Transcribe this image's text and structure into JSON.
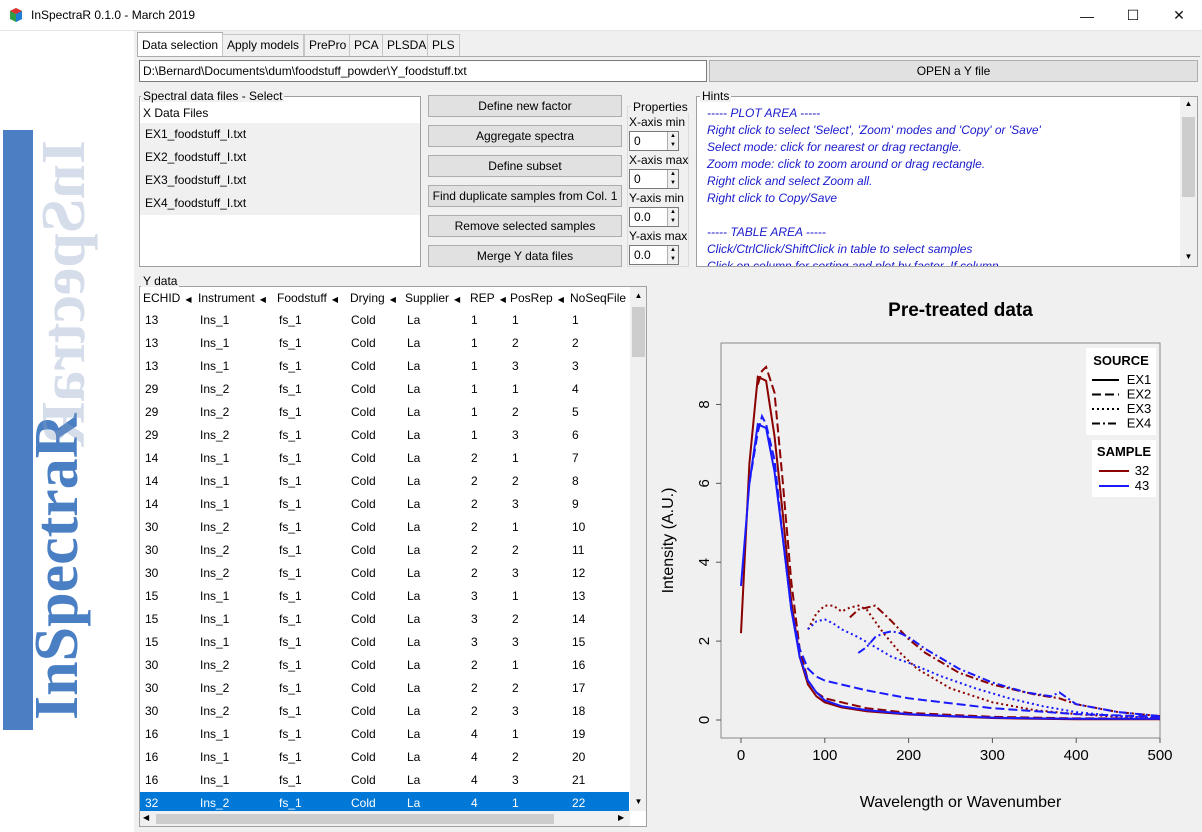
{
  "window": {
    "title": "InSpectraR 0.1.0  -  March 2019",
    "minimize": "—",
    "maximize": "☐",
    "close": "✕"
  },
  "logo": {
    "text": "InSpectraR"
  },
  "tabs": [
    "Data selection",
    "Apply models",
    "PrePro",
    "PCA",
    "PLSDA",
    "PLS"
  ],
  "file_path": "D:\\Bernard\\Documents\\dum\\foodstuff_powder\\Y_foodstuff.txt",
  "open_button": "OPEN a Y file",
  "spectral": {
    "legend": "Spectral data files - Select",
    "header": "X Data Files",
    "files": [
      "EX1_foodstuff_I.txt",
      "EX2_foodstuff_I.txt",
      "EX3_foodstuff_I.txt",
      "EX4_foodstuff_I.txt"
    ]
  },
  "actions": [
    "Define new factor",
    "Aggregate spectra",
    "Define subset",
    "Find duplicate samples from Col. 1",
    "Remove selected samples",
    "Merge Y data files"
  ],
  "properties": {
    "legend": "Properties",
    "fields": [
      {
        "label": "X-axis min",
        "value": "0"
      },
      {
        "label": "X-axis max",
        "value": "0"
      },
      {
        "label": "Y-axis min",
        "value": "0.0"
      },
      {
        "label": "Y-axis max",
        "value": "0.0"
      }
    ]
  },
  "hints": {
    "legend": "Hints",
    "lines": [
      "----- PLOT AREA -----",
      "Right click to select 'Select', 'Zoom' modes and 'Copy' or 'Save'",
      "Select mode: click for nearest or drag rectangle.",
      "Zoom mode: click to zoom around or drag rectangle.",
      "Right click and select Zoom all.",
      "Right click to Copy/Save",
      "",
      "----- TABLE AREA -----",
      "Click/CtrlClick/ShiftClick in table to select samples",
      "Click on column for sorting and plot by factor. If column"
    ]
  },
  "ydata": {
    "legend": "Y data",
    "columns": [
      "ECHID",
      "Instrument",
      "Foodstuff",
      "Drying",
      "Supplier",
      "REP",
      "PosRep",
      "NoSeqFile"
    ],
    "rows": [
      [
        "13",
        "Ins_1",
        "fs_1",
        "Cold",
        "La",
        "1",
        "1",
        "1"
      ],
      [
        "13",
        "Ins_1",
        "fs_1",
        "Cold",
        "La",
        "1",
        "2",
        "2"
      ],
      [
        "13",
        "Ins_1",
        "fs_1",
        "Cold",
        "La",
        "1",
        "3",
        "3"
      ],
      [
        "29",
        "Ins_2",
        "fs_1",
        "Cold",
        "La",
        "1",
        "1",
        "4"
      ],
      [
        "29",
        "Ins_2",
        "fs_1",
        "Cold",
        "La",
        "1",
        "2",
        "5"
      ],
      [
        "29",
        "Ins_2",
        "fs_1",
        "Cold",
        "La",
        "1",
        "3",
        "6"
      ],
      [
        "14",
        "Ins_1",
        "fs_1",
        "Cold",
        "La",
        "2",
        "1",
        "7"
      ],
      [
        "14",
        "Ins_1",
        "fs_1",
        "Cold",
        "La",
        "2",
        "2",
        "8"
      ],
      [
        "14",
        "Ins_1",
        "fs_1",
        "Cold",
        "La",
        "2",
        "3",
        "9"
      ],
      [
        "30",
        "Ins_2",
        "fs_1",
        "Cold",
        "La",
        "2",
        "1",
        "10"
      ],
      [
        "30",
        "Ins_2",
        "fs_1",
        "Cold",
        "La",
        "2",
        "2",
        "11"
      ],
      [
        "30",
        "Ins_2",
        "fs_1",
        "Cold",
        "La",
        "2",
        "3",
        "12"
      ],
      [
        "15",
        "Ins_1",
        "fs_1",
        "Cold",
        "La",
        "3",
        "1",
        "13"
      ],
      [
        "15",
        "Ins_1",
        "fs_1",
        "Cold",
        "La",
        "3",
        "2",
        "14"
      ],
      [
        "15",
        "Ins_1",
        "fs_1",
        "Cold",
        "La",
        "3",
        "3",
        "15"
      ],
      [
        "30",
        "Ins_2",
        "fs_1",
        "Cold",
        "La",
        "2",
        "1",
        "16"
      ],
      [
        "30",
        "Ins_2",
        "fs_1",
        "Cold",
        "La",
        "2",
        "2",
        "17"
      ],
      [
        "30",
        "Ins_2",
        "fs_1",
        "Cold",
        "La",
        "2",
        "3",
        "18"
      ],
      [
        "16",
        "Ins_1",
        "fs_1",
        "Cold",
        "La",
        "4",
        "1",
        "19"
      ],
      [
        "16",
        "Ins_1",
        "fs_1",
        "Cold",
        "La",
        "4",
        "2",
        "20"
      ],
      [
        "16",
        "Ins_1",
        "fs_1",
        "Cold",
        "La",
        "4",
        "3",
        "21"
      ],
      [
        "32",
        "Ins_2",
        "fs_1",
        "Cold",
        "La",
        "4",
        "1",
        "22"
      ]
    ],
    "selected_row": 21
  },
  "chart_data": {
    "type": "line",
    "title": "Pre-treated data",
    "xlabel": "Wavelength or Wavenumber",
    "ylabel": "Intensity (A.U.)",
    "xlim": [
      0,
      500
    ],
    "ylim": [
      0,
      9
    ],
    "xticks": [
      "0",
      "100",
      "200",
      "300",
      "400",
      "500"
    ],
    "yticks": [
      "0",
      "2",
      "4",
      "6",
      "8"
    ],
    "legend_source": {
      "title": "SOURCE",
      "entries": [
        "EX1",
        "EX2",
        "EX3",
        "EX4"
      ]
    },
    "legend_sample": {
      "title": "SAMPLE",
      "entries": [
        "32",
        "43"
      ]
    },
    "colors": {
      "32": "#8b0000",
      "43": "#1a1aff"
    },
    "series": [
      {
        "sample": "32",
        "source": "EX1",
        "x": [
          0,
          10,
          20,
          30,
          40,
          50,
          60,
          70,
          80,
          90,
          100,
          120,
          150,
          200,
          250,
          300,
          350,
          400,
          450,
          500
        ],
        "y": [
          2.2,
          6.5,
          8.7,
          8.6,
          7.2,
          5.2,
          3.0,
          1.6,
          0.9,
          0.6,
          0.45,
          0.32,
          0.22,
          0.14,
          0.09,
          0.05,
          0.03,
          0.02,
          0.02,
          0.02
        ]
      },
      {
        "sample": "32",
        "source": "EX2",
        "x": [
          20,
          25,
          30,
          40,
          50,
          60,
          70,
          80,
          90,
          100,
          150,
          200,
          300,
          400,
          500
        ],
        "y": [
          8.5,
          8.85,
          8.95,
          8.3,
          6.0,
          3.5,
          1.8,
          1.0,
          0.7,
          0.55,
          0.3,
          0.18,
          0.08,
          0.04,
          0.04
        ]
      },
      {
        "sample": "32",
        "source": "EX3",
        "x": [
          80,
          90,
          100,
          110,
          120,
          130,
          140,
          150,
          160,
          170,
          190,
          210,
          250,
          300,
          350,
          400,
          450,
          500
        ],
        "y": [
          2.3,
          2.7,
          2.9,
          2.9,
          2.75,
          2.85,
          2.9,
          2.8,
          2.5,
          2.2,
          1.7,
          1.3,
          0.8,
          0.45,
          0.25,
          0.15,
          0.08,
          0.05
        ]
      },
      {
        "sample": "32",
        "source": "EX4",
        "x": [
          130,
          140,
          150,
          160,
          170,
          180,
          200,
          220,
          260,
          300,
          350,
          380,
          400,
          450,
          500
        ],
        "y": [
          2.6,
          2.8,
          2.85,
          2.9,
          2.7,
          2.5,
          2.05,
          1.7,
          1.2,
          0.9,
          0.65,
          0.55,
          0.4,
          0.2,
          0.1
        ]
      },
      {
        "sample": "43",
        "source": "EX1",
        "x": [
          0,
          10,
          20,
          30,
          40,
          50,
          60,
          70,
          80,
          90,
          100,
          120,
          150,
          200,
          250,
          300,
          350,
          400,
          450,
          500
        ],
        "y": [
          3.4,
          6.0,
          7.5,
          7.4,
          6.3,
          4.6,
          2.8,
          1.6,
          1.0,
          0.7,
          0.5,
          0.35,
          0.25,
          0.15,
          0.1,
          0.06,
          0.04,
          0.03,
          0.03,
          0.03
        ]
      },
      {
        "sample": "43",
        "source": "EX2",
        "x": [
          10,
          20,
          25,
          30,
          40,
          50,
          60,
          70,
          80,
          90,
          100,
          150,
          200,
          300,
          400,
          500
        ],
        "y": [
          6.0,
          7.3,
          7.7,
          7.5,
          6.6,
          4.6,
          2.8,
          1.8,
          1.3,
          1.1,
          1.0,
          0.75,
          0.55,
          0.3,
          0.15,
          0.08
        ]
      },
      {
        "sample": "43",
        "source": "EX3",
        "x": [
          80,
          90,
          100,
          110,
          120,
          130,
          140,
          160,
          180,
          200,
          240,
          280,
          320,
          360,
          400,
          450,
          500
        ],
        "y": [
          2.3,
          2.5,
          2.55,
          2.45,
          2.3,
          2.2,
          2.1,
          1.85,
          1.6,
          1.45,
          1.1,
          0.8,
          0.55,
          0.35,
          0.2,
          0.1,
          0.05
        ]
      },
      {
        "sample": "43",
        "source": "EX4",
        "x": [
          140,
          150,
          160,
          170,
          180,
          190,
          200,
          220,
          260,
          300,
          340,
          370,
          380,
          400,
          450,
          500
        ],
        "y": [
          1.7,
          1.85,
          2.1,
          2.2,
          2.25,
          2.2,
          2.1,
          1.8,
          1.3,
          0.95,
          0.7,
          0.6,
          0.7,
          0.4,
          0.2,
          0.1
        ]
      }
    ]
  }
}
